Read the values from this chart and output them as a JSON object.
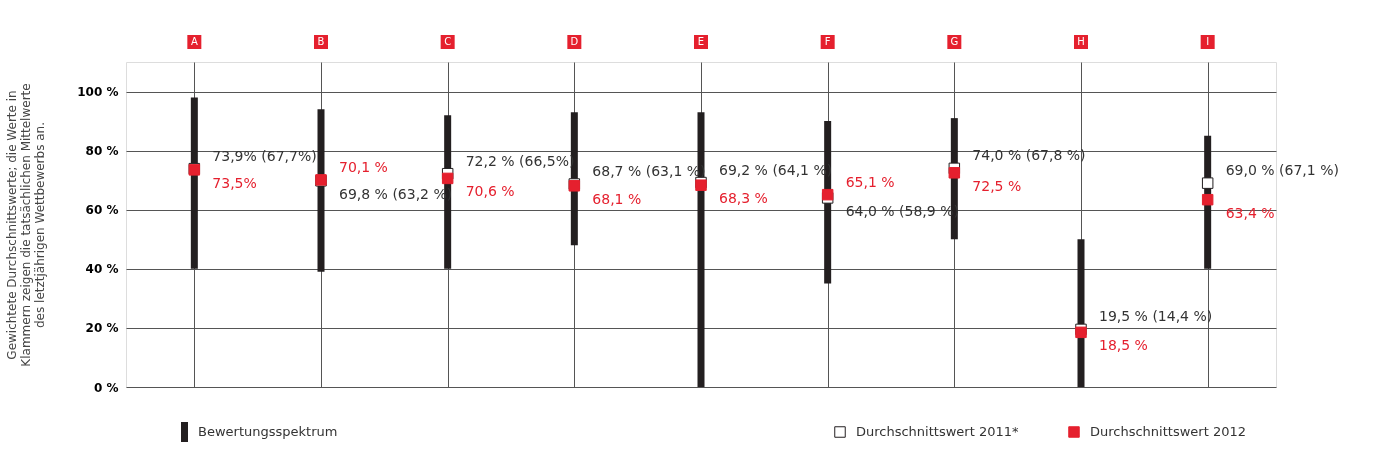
{
  "chart_data": {
    "type": "bar",
    "ylabel": "Gewichtete Durchschnittswerte; die Werte in\nKlammern zeigen die tatsächlichen Mittelwerte\ndes letztjährigen Wettbewerbs an.",
    "categories": [
      "A",
      "B",
      "C",
      "D",
      "E",
      "F",
      "G",
      "H",
      "I"
    ],
    "ylim": [
      0,
      110
    ],
    "yticks": [
      {
        "value": 0,
        "label": "0 %"
      },
      {
        "value": 20,
        "label": "20 %"
      },
      {
        "value": 40,
        "label": "40 %"
      },
      {
        "value": 60,
        "label": "60 %"
      },
      {
        "value": 80,
        "label": "80 %"
      },
      {
        "value": 100,
        "label": "100 %"
      }
    ],
    "grid": true,
    "legend": "bottom",
    "marker": "square",
    "series": [
      {
        "name": "Bewertungsspektrum",
        "color": "#231f20",
        "base": [
          40,
          39,
          40,
          48,
          0,
          35,
          50,
          0,
          40
        ],
        "values": [
          58,
          55,
          52,
          45,
          93,
          55,
          41,
          50,
          45
        ]
      },
      {
        "name": "Durchschnittswert 2011*",
        "type": "scatter",
        "color": "#ffffff",
        "values": [
          73.9,
          69.8,
          72.2,
          68.7,
          69.2,
          64.0,
          74.0,
          19.5,
          69.0
        ],
        "value_labels": [
          "73,9% (67,7%)",
          "69,8 % (63,2 %)",
          "72,2 % (66,5%)",
          "68,7 % (63,1 %)",
          "69,2 % (64,1 %)",
          "64,0 % (58,9 %)",
          "74,0 % (67,8 %)",
          "19,5 % (14,4 %)",
          "69,0 % (67,1 %)"
        ]
      },
      {
        "name": "Durchschnittswert 2012",
        "type": "scatter",
        "color": "#e5202e",
        "values": [
          73.5,
          70.1,
          70.6,
          68.1,
          68.3,
          65.1,
          72.5,
          18.5,
          63.4
        ],
        "value_labels": [
          "73,5%",
          "70,1 %",
          "70,6 %",
          "68,1 %",
          "68,3 %",
          "65,1 %",
          "72,5 %",
          "18,5 %",
          "63,4 %"
        ]
      }
    ]
  }
}
